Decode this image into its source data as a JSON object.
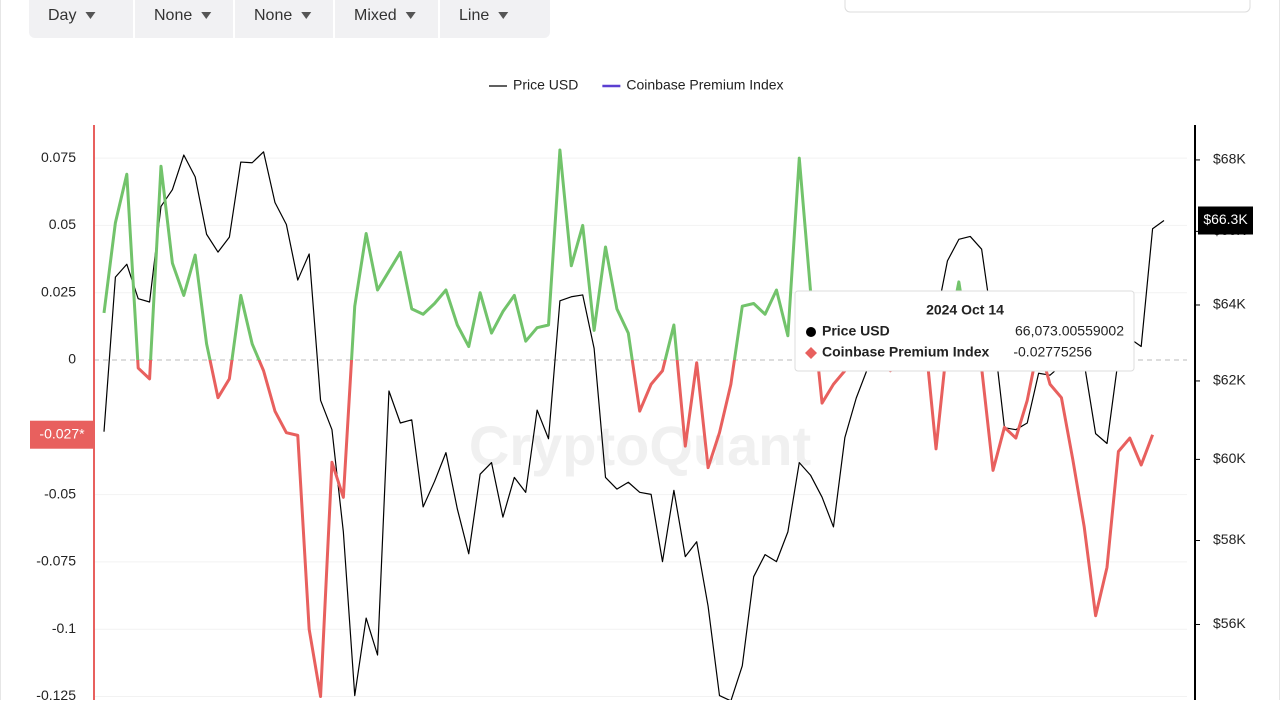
{
  "toolbar": [
    "Day",
    "None",
    "None",
    "Mixed",
    "Line"
  ],
  "chart_data": {
    "type": "line",
    "watermark": "CryptoQuant",
    "ylim": [
      -0.1263,
      0.0873
    ],
    "yticks": [
      0.075,
      0.05,
      0.025,
      0,
      -0.05,
      -0.075,
      -0.1,
      -0.125
    ],
    "y2lim": [
      54260,
      69000
    ],
    "y2log": true,
    "y2ticks": [
      {
        "value": 68000,
        "label": "$68K"
      },
      {
        "value": 66000,
        "label": "$66K"
      },
      {
        "value": 64000,
        "label": "$64K"
      },
      {
        "value": 62000,
        "label": "$62K"
      },
      {
        "value": 60000,
        "label": "$60K"
      },
      {
        "value": 58000,
        "label": "$58K"
      },
      {
        "value": 56000,
        "label": "$56K"
      }
    ],
    "grid": true,
    "series": [
      {
        "name": "Price USD",
        "color": "#000000",
        "axis": "y2",
        "last_label": "$66.3K",
        "values": [
          60700,
          64750,
          65100,
          64170,
          64080,
          66690,
          67160,
          68140,
          67520,
          65920,
          65430,
          65840,
          67940,
          67920,
          68230,
          66800,
          66190,
          64670,
          65380,
          61500,
          60750,
          58210,
          54360,
          56150,
          55290,
          61740,
          60920,
          61000,
          58820,
          59450,
          60170,
          58770,
          57680,
          59630,
          59920,
          58570,
          59550,
          59180,
          61250,
          60520,
          64110,
          64220,
          64270,
          62850,
          59550,
          59260,
          59430,
          59180,
          59130,
          57490,
          59230,
          57610,
          57970,
          56430,
          54360,
          54240,
          55040,
          57130,
          57660,
          57490,
          58210,
          59920,
          59600,
          59060,
          58330,
          60550,
          61560,
          62330,
          62850,
          63370,
          63630,
          63110,
          63370,
          63630,
          65190,
          65780,
          65860,
          65510,
          63370,
          60800,
          60750,
          60920,
          62200,
          62150,
          62410,
          63370,
          62460,
          60650,
          60400,
          62590,
          63110,
          62900,
          66073.00559002,
          66300
        ]
      },
      {
        "name": "Coinbase Premium Index",
        "color": "#5b3fd1",
        "positive_color": "#72c36b",
        "negative_color": "#e8605e",
        "last_label": "-0.027*",
        "values": [
          0.0175,
          0.051,
          0.069,
          -0.003,
          -0.007,
          0.072,
          0.036,
          0.024,
          0.039,
          0.006,
          -0.014,
          -0.007,
          0.024,
          0.006,
          -0.004,
          -0.019,
          -0.027,
          -0.028,
          -0.1,
          -0.125,
          -0.038,
          -0.051,
          0.02,
          0.047,
          0.026,
          0.033,
          0.04,
          0.019,
          0.017,
          0.021,
          0.026,
          0.013,
          0.005,
          0.025,
          0.01,
          0.018,
          0.024,
          0.007,
          0.012,
          0.013,
          0.078,
          0.035,
          0.05,
          0.011,
          0.042,
          0.019,
          0.01,
          -0.019,
          -0.009,
          -0.004,
          0.013,
          -0.032,
          -0.001,
          -0.04,
          -0.027,
          -0.009,
          0.02,
          0.021,
          0.017,
          0.026,
          0.009,
          0.075,
          0.025,
          -0.016,
          -0.009,
          -0.004,
          0.005,
          0.012,
          0.008,
          -0.004,
          0.003,
          0.015,
          0.01,
          -0.033,
          0.007,
          0.029,
          0.002,
          -0.003,
          -0.041,
          -0.025,
          -0.029,
          -0.015,
          0.006,
          -0.009,
          -0.014,
          -0.037,
          -0.062,
          -0.095,
          -0.077,
          -0.034,
          -0.029,
          -0.039,
          -0.02775256,
          null
        ]
      }
    ],
    "tooltip": {
      "title": "2024 Oct 14",
      "rows": [
        {
          "name": "Price USD",
          "value": "66,073.00559002"
        },
        {
          "name": "Coinbase Premium Index",
          "value": "-0.02775256"
        }
      ]
    }
  }
}
